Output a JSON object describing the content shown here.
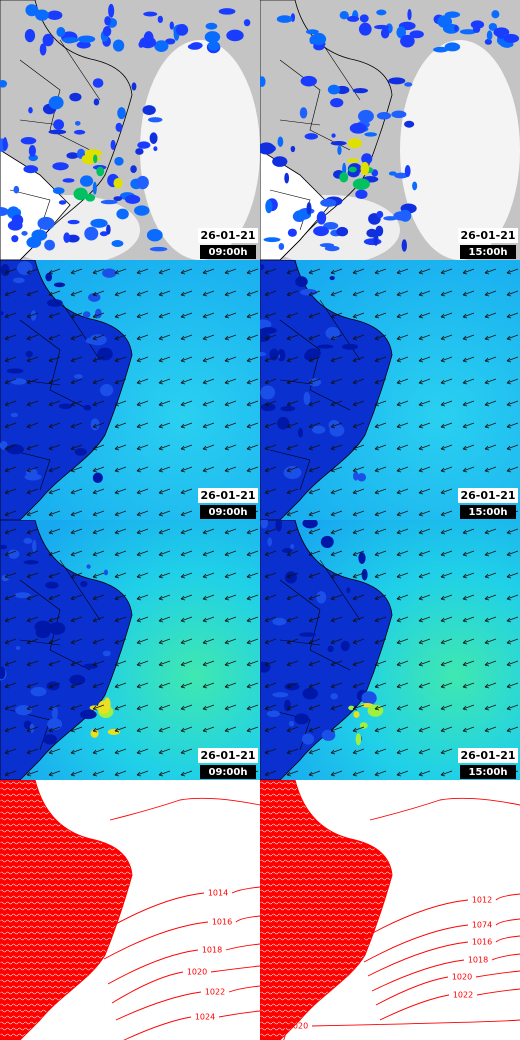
{
  "panels": [
    {
      "date": "26-01-21",
      "time": "09:00h"
    },
    {
      "date": "26-01-21",
      "time": "15:00h"
    },
    {
      "date": "26-01-21",
      "time": "09:00h"
    },
    {
      "date": "26-01-21",
      "time": "15:00h"
    },
    {
      "date": "26-01-21",
      "time": "09:00h"
    },
    {
      "date": "26-01-21",
      "time": "15:00h"
    },
    {
      "contour_labels": [
        "1014",
        "1016",
        "1018",
        "1020",
        "1022",
        "1024"
      ]
    },
    {
      "contour_labels": [
        "1012",
        "1074",
        "1016",
        "1018",
        "1020",
        "1022",
        "1020"
      ]
    }
  ]
}
